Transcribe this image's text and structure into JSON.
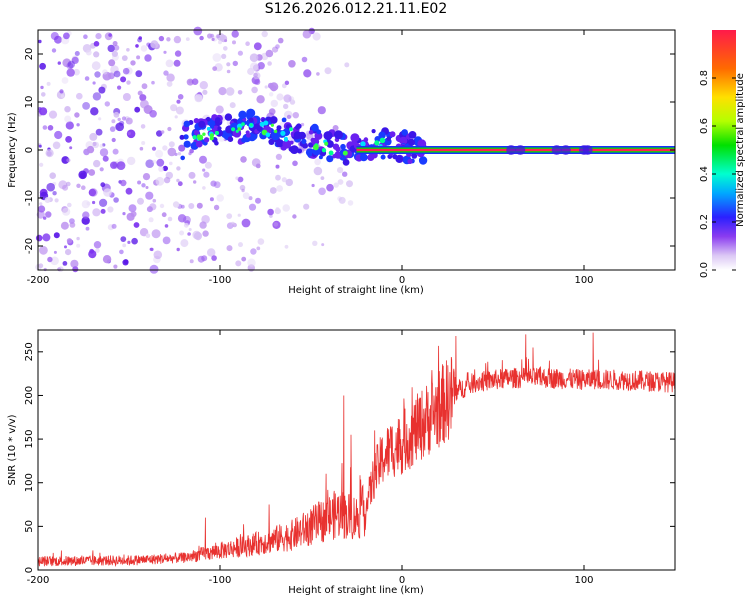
{
  "title": "S126.2026.012.21.11.E02",
  "chart_data": [
    {
      "type": "heatmap",
      "xlabel": "Height of straight line (km)",
      "ylabel": "Frequency (Hz)",
      "xlim": [
        -200,
        150
      ],
      "ylim": [
        -25,
        25
      ],
      "xticks": [
        -200,
        -100,
        0,
        100
      ],
      "yticks": [
        -20,
        -10,
        0,
        10,
        20
      ],
      "colorbar": {
        "label": "Normalized spectral amplitude",
        "range": [
          0,
          1
        ],
        "ticks": [
          "0.0",
          "0.2",
          "0.4",
          "0.6",
          "0.8"
        ]
      },
      "ridge": {
        "description": "dominant frequency line",
        "points": [
          [
            -120,
            3
          ],
          [
            -100,
            4
          ],
          [
            -80,
            5
          ],
          [
            -60,
            3
          ],
          [
            -40,
            1
          ],
          [
            -30,
            0
          ],
          [
            -20,
            1
          ],
          [
            -10,
            1
          ],
          [
            0,
            1
          ],
          [
            10,
            0
          ],
          [
            150,
            0
          ]
        ]
      }
    },
    {
      "type": "line",
      "xlabel": "Height of straight line (km)",
      "ylabel": "SNR (10 * v/v)",
      "xlim": [
        -200,
        150
      ],
      "ylim": [
        0,
        275
      ],
      "xticks": [
        -200,
        -100,
        0,
        100
      ],
      "yticks": [
        0,
        50,
        100,
        150,
        200,
        250
      ],
      "series": [
        {
          "name": "SNR",
          "color": "#e8312f",
          "trend": {
            "x": [
              -200,
              -150,
              -120,
              -100,
              -80,
              -60,
              -45,
              -35,
              -25,
              -20,
              -15,
              -10,
              -5,
              0,
              10,
              20,
              30,
              40,
              60,
              80,
              100,
              120,
              150
            ],
            "y": [
              10,
              11,
              14,
              22,
              30,
              40,
              55,
              65,
              60,
              70,
              110,
              130,
              140,
              145,
              165,
              185,
              205,
              215,
              220,
              220,
              218,
              218,
              215
            ]
          },
          "spikes": [
            [
              -32,
              200
            ],
            [
              -28,
              155
            ],
            [
              -15,
              160
            ],
            [
              68,
              270
            ],
            [
              72,
              255
            ],
            [
              105,
              272
            ],
            [
              -108,
              60
            ],
            [
              -73,
              75
            ]
          ]
        }
      ]
    }
  ]
}
